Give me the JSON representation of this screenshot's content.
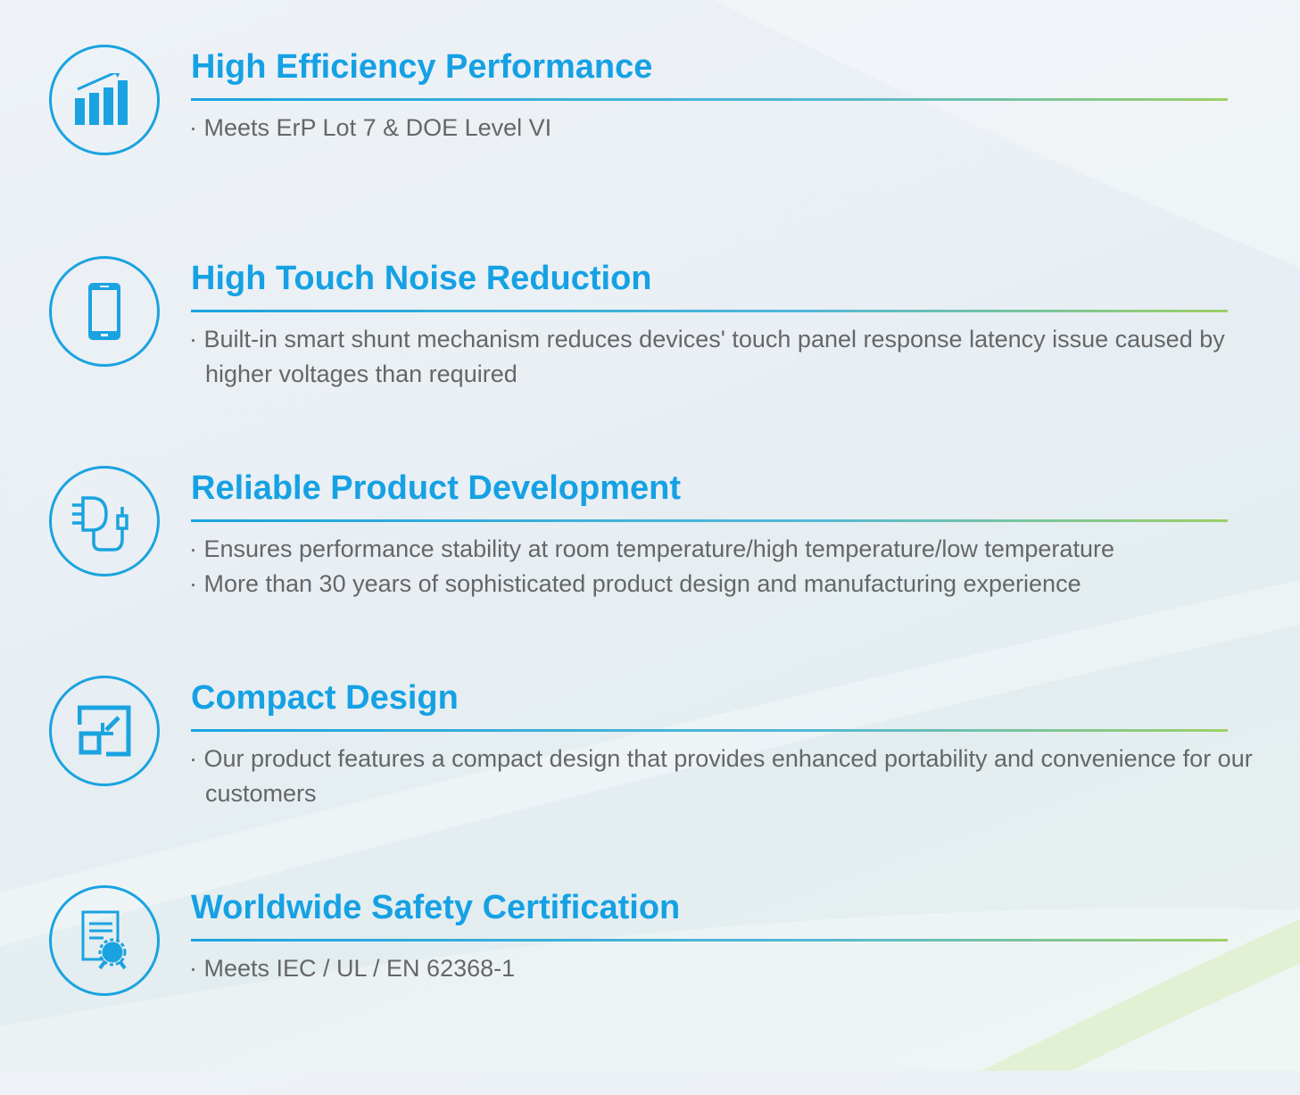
{
  "accent_color": "#15a1e4",
  "features": [
    {
      "icon": "chart-growth-icon",
      "title": "High Efficiency Performance",
      "bullets": [
        "· Meets ErP Lot 7 & DOE Level VI"
      ]
    },
    {
      "icon": "smartphone-icon",
      "title": "High Touch Noise Reduction",
      "bullets": [
        "· Built-in smart shunt mechanism reduces devices' touch panel response latency issue caused by higher voltages than required"
      ]
    },
    {
      "icon": "power-adapter-icon",
      "title": "Reliable Product Development",
      "bullets": [
        "· Ensures performance stability at room temperature/high temperature/low temperature",
        "· More than 30 years of sophisticated product  design and manufacturing experience"
      ]
    },
    {
      "icon": "compact-resize-icon",
      "title": "Compact Design",
      "bullets": [
        "· Our product features a compact design that provides enhanced portability and convenience for our customers"
      ]
    },
    {
      "icon": "certificate-icon",
      "title": "Worldwide Safety Certification",
      "bullets": [
        "· Meets IEC / UL / EN 62368-1"
      ]
    }
  ]
}
